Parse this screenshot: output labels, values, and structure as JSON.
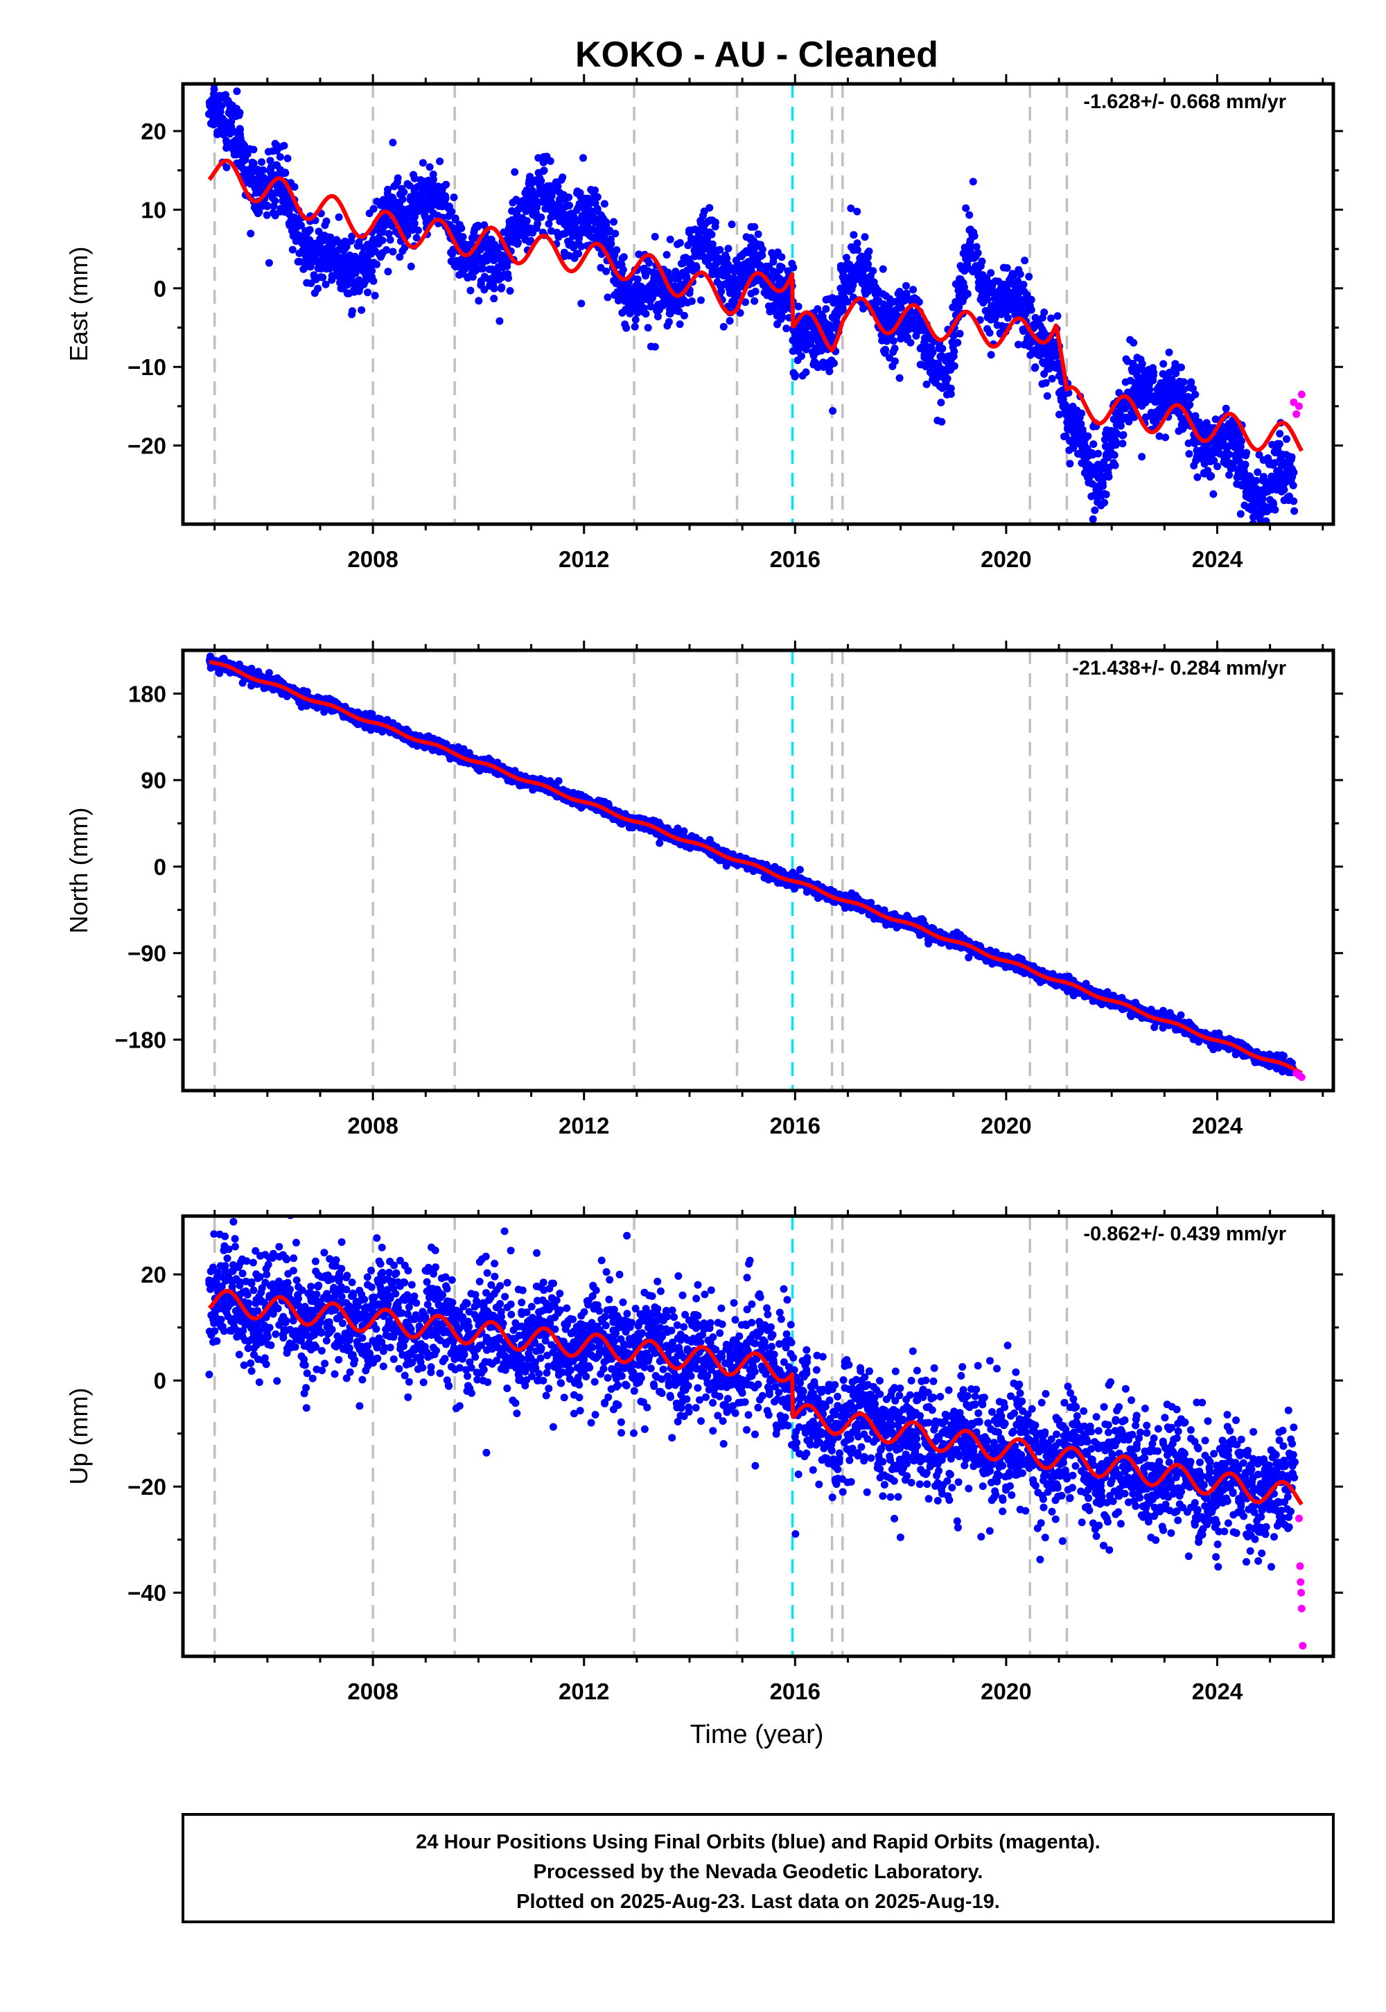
{
  "chart_data": {
    "title": "KOKO  - AU - Cleaned",
    "xlabel": "Time (year)",
    "xlim": [
      2004.4,
      2026.2
    ],
    "xticks": [
      2008,
      2012,
      2016,
      2020,
      2024
    ],
    "event_lines": {
      "gray": [
        2005.0,
        2008.0,
        2009.55,
        2012.95,
        2014.9,
        2016.7,
        2016.9,
        2020.45,
        2021.15
      ],
      "cyan": [
        2015.95
      ]
    },
    "colors": {
      "final": "#0000ff",
      "rapid": "#ff00ff",
      "model": "#ff0000",
      "event": "#c0c0c0",
      "event_cyan": "#00e5ff"
    },
    "panels": [
      {
        "type": "scatter",
        "ylabel": "East (mm)",
        "ylim": [
          -30,
          26
        ],
        "yticks": [
          20,
          10,
          0,
          -10,
          -20
        ],
        "rate_label": "-1.628+/- 0.668 mm/yr",
        "model": {
          "anchors": [
            [
              2004.9,
              15
            ],
            [
              2008.0,
              8.0
            ],
            [
              2012.9,
              3.0
            ],
            [
              2014.9,
              -1.5
            ],
            [
              2015.95,
              2.5
            ],
            [
              2015.96,
              -4.5
            ],
            [
              2016.7,
              -6.0
            ],
            [
              2016.9,
              -3.0
            ],
            [
              2020.45,
              -6.0
            ],
            [
              2020.95,
              -4.0
            ],
            [
              2021.15,
              -14.5
            ],
            [
              2025.6,
              -19.5
            ]
          ],
          "seasonal_amp": 2.0
        },
        "data": {
          "anchors": [
            [
              2004.9,
              15
            ],
            [
              2008.0,
              8.0
            ],
            [
              2012.9,
              3.0
            ],
            [
              2014.9,
              -1.5
            ],
            [
              2015.95,
              2.5
            ],
            [
              2015.96,
              -4.5
            ],
            [
              2016.7,
              -6.0
            ],
            [
              2016.9,
              -3.0
            ],
            [
              2020.45,
              -6.0
            ],
            [
              2020.95,
              -4.0
            ],
            [
              2021.15,
              -14.5
            ],
            [
              2025.6,
              -19.5
            ]
          ],
          "wiggle": [
            [
              2005.0,
              9
            ],
            [
              2005.1,
              6
            ],
            [
              2007.4,
              -8
            ],
            [
              2008.9,
              5
            ],
            [
              2010.4,
              -5
            ],
            [
              2010.7,
              5
            ],
            [
              2011.9,
              6
            ],
            [
              2013.2,
              -5
            ],
            [
              2014.3,
              5
            ],
            [
              2016.3,
              -3
            ],
            [
              2017.0,
              5
            ],
            [
              2018.9,
              -5
            ],
            [
              2019.3,
              8
            ],
            [
              2021.8,
              -8
            ],
            [
              2022.6,
              5
            ],
            [
              2024.7,
              -6
            ]
          ],
          "noise": 1.8,
          "spread": 1.6
        },
        "rapid": [
          [
            2025.45,
            -14.5
          ],
          [
            2025.5,
            -16.0
          ],
          [
            2025.55,
            -15.0
          ],
          [
            2025.6,
            -13.5
          ]
        ]
      },
      {
        "type": "scatter",
        "ylabel": "North (mm)",
        "ylim": [
          -233,
          225
        ],
        "yticks": [
          180,
          90,
          0,
          -90,
          -180
        ],
        "rate_label": "-21.438+/- 0.284 mm/yr",
        "model": {
          "anchors": [
            [
              2004.9,
              214
            ],
            [
              2025.6,
              -214
            ]
          ],
          "seasonal_amp": 1.5
        },
        "data": {
          "anchors": [
            [
              2004.9,
              214
            ],
            [
              2025.6,
              -214
            ]
          ],
          "wiggle": [],
          "noise": 2.5,
          "spread": 2.5
        },
        "rapid": [
          [
            2025.5,
            -215
          ],
          [
            2025.55,
            -217
          ],
          [
            2025.6,
            -219
          ]
        ]
      },
      {
        "type": "scatter",
        "ylabel": "Up (mm)",
        "ylim": [
          -52,
          31
        ],
        "yticks": [
          20,
          0,
          -20,
          -40
        ],
        "rate_label": "-0.862+/- 0.439 mm/yr",
        "model": {
          "anchors": [
            [
              2004.9,
              15
            ],
            [
              2015.95,
              2.0
            ],
            [
              2015.96,
              -6.5
            ],
            [
              2025.6,
              -22.0
            ]
          ],
          "seasonal_amp": 2.3
        },
        "data": {
          "anchors": [
            [
              2004.9,
              15
            ],
            [
              2015.95,
              2.0
            ],
            [
              2015.96,
              -6.5
            ],
            [
              2025.6,
              -22.0
            ]
          ],
          "wiggle": [],
          "noise": 4.5,
          "spread": 1.5
        },
        "rapid": [
          [
            2025.55,
            -26
          ],
          [
            2025.57,
            -35
          ],
          [
            2025.58,
            -38
          ],
          [
            2025.59,
            -40
          ],
          [
            2025.6,
            -43
          ],
          [
            2025.62,
            -50
          ]
        ]
      }
    ],
    "footer": [
      "24 Hour Positions Using Final Orbits (blue) and Rapid Orbits (magenta).",
      "Processed by the Nevada Geodetic Laboratory.",
      "Plotted on 2025-Aug-23. Last data on 2025-Aug-19."
    ]
  }
}
